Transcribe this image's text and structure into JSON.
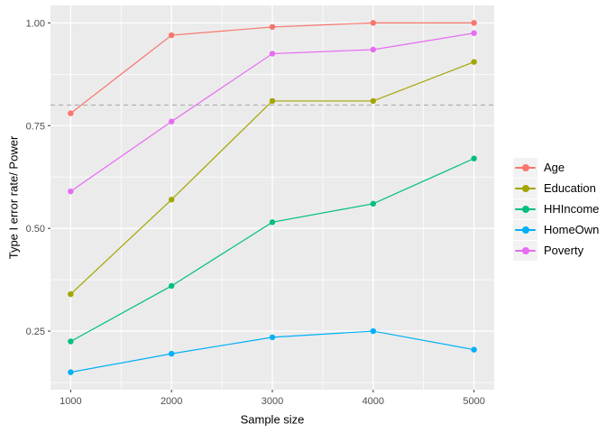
{
  "figure": {
    "background": "#FFFFFF",
    "panel_background": "#EBEBEB",
    "grid_color": "#FFFFFF",
    "tick_mark_color": "#333333",
    "tick_label_color": "#4D4D4D",
    "axis_title_color": "#000000",
    "legend_key_background": "#F2F2F2"
  },
  "chart_data": {
    "type": "line",
    "title": "",
    "xlabel": "Sample size",
    "ylabel": "Type I error rate/ Power",
    "x": [
      1000,
      2000,
      3000,
      4000,
      5000
    ],
    "x_tick_labels": [
      "1000",
      "2000",
      "3000",
      "4000",
      "5000"
    ],
    "y_ticks": [
      0.25,
      0.5,
      0.75,
      1.0
    ],
    "y_tick_labels": [
      "0.25",
      "0.50",
      "0.75",
      "1.00"
    ],
    "xlim": [
      800,
      5200
    ],
    "ylim": [
      0.1075,
      1.0425
    ],
    "grid": true,
    "legend_position": "right",
    "reference_line": {
      "y": 0.8,
      "style": "dashed",
      "color": "#A8A8A8"
    },
    "series": [
      {
        "name": "Age",
        "color": "#F8766D",
        "values": [
          0.78,
          0.97,
          0.99,
          1.0,
          1.0
        ]
      },
      {
        "name": "Education",
        "color": "#A3A500",
        "values": [
          0.34,
          0.57,
          0.81,
          0.81,
          0.905
        ]
      },
      {
        "name": "HHIncome",
        "color": "#00BF7D",
        "values": [
          0.225,
          0.36,
          0.515,
          0.56,
          0.67
        ]
      },
      {
        "name": "HomeOwn",
        "color": "#00B0F6",
        "values": [
          0.15,
          0.195,
          0.235,
          0.25,
          0.205
        ]
      },
      {
        "name": "Poverty",
        "color": "#E76BF3",
        "values": [
          0.59,
          0.76,
          0.925,
          0.935,
          0.975
        ]
      }
    ]
  }
}
